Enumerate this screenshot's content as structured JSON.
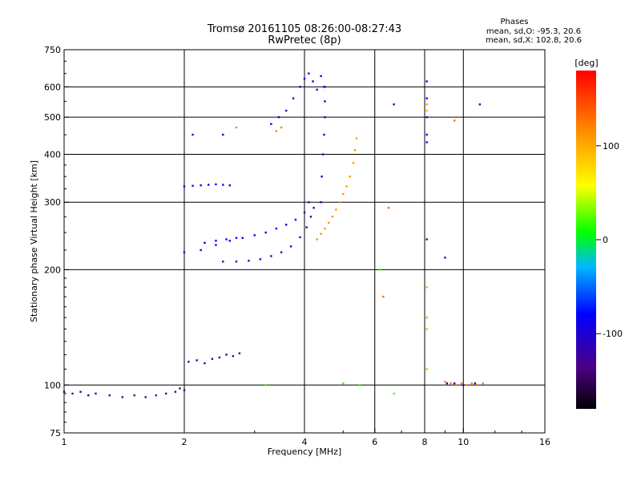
{
  "header": {
    "title_line1": "Tromsø 20161105 08:26:00-08:27:43",
    "title_line2": "RwPretec (8p)",
    "phases_title": "Phases",
    "phases_o": "mean, sd,O: -95.3, 20.6",
    "phases_x": "mean, sd,X: 102.8, 20.6"
  },
  "chart_data": {
    "type": "scatter",
    "xlabel": "Frequency [MHz]",
    "ylabel": "Stationary phase Virtual Height [km]",
    "x_scale": "log",
    "y_scale": "log",
    "xlim": [
      1,
      16
    ],
    "ylim": [
      75,
      750
    ],
    "x_ticks": [
      1,
      2,
      4,
      6,
      8,
      10,
      16
    ],
    "y_ticks": [
      75,
      100,
      200,
      300,
      400,
      500,
      600,
      750
    ],
    "grid": true,
    "colorbar": {
      "label": "[deg]",
      "range": [
        -180,
        180
      ],
      "ticks": [
        100,
        0,
        -100
      ]
    },
    "series": [
      {
        "phase": -130,
        "points": [
          [
            1.0,
            96
          ],
          [
            1.05,
            95
          ],
          [
            1.1,
            96
          ],
          [
            1.15,
            94
          ],
          [
            1.2,
            95
          ],
          [
            1.3,
            94
          ],
          [
            1.4,
            93
          ],
          [
            1.5,
            94
          ],
          [
            1.6,
            93
          ],
          [
            1.7,
            94
          ],
          [
            1.8,
            95
          ],
          [
            1.9,
            96
          ],
          [
            1.95,
            98
          ],
          [
            2.0,
            97
          ]
        ]
      },
      {
        "phase": -110,
        "points": [
          [
            2.05,
            115
          ],
          [
            2.15,
            116
          ],
          [
            2.25,
            114
          ],
          [
            2.35,
            117
          ],
          [
            2.45,
            118
          ],
          [
            2.55,
            120
          ],
          [
            2.65,
            119
          ],
          [
            2.75,
            121
          ]
        ]
      },
      {
        "phase": -100,
        "points": [
          [
            2.0,
            330
          ],
          [
            2.1,
            331
          ],
          [
            2.2,
            332
          ],
          [
            2.3,
            333
          ],
          [
            2.4,
            334
          ],
          [
            2.5,
            333
          ],
          [
            2.6,
            332
          ]
        ]
      },
      {
        "phase": -120,
        "points": [
          [
            2.5,
            210
          ],
          [
            2.7,
            210
          ],
          [
            2.9,
            211
          ],
          [
            3.1,
            213
          ],
          [
            3.3,
            217
          ],
          [
            3.5,
            222
          ],
          [
            3.7,
            230
          ],
          [
            3.9,
            243
          ],
          [
            4.05,
            258
          ],
          [
            4.15,
            275
          ],
          [
            4.22,
            290
          ]
        ]
      },
      {
        "phase": -95,
        "points": [
          [
            2.0,
            222
          ],
          [
            2.2,
            225
          ],
          [
            2.4,
            232
          ],
          [
            2.6,
            238
          ],
          [
            2.8,
            242
          ],
          [
            3.0,
            246
          ],
          [
            3.2,
            250
          ],
          [
            3.4,
            256
          ],
          [
            3.6,
            262
          ],
          [
            3.8,
            270
          ],
          [
            4.0,
            282
          ],
          [
            4.1,
            300
          ]
        ]
      },
      {
        "phase": -80,
        "points": [
          [
            2.25,
            235
          ],
          [
            2.4,
            238
          ],
          [
            2.55,
            240
          ],
          [
            2.7,
            242
          ]
        ]
      },
      {
        "phase": -95,
        "points": [
          [
            3.3,
            480
          ],
          [
            3.45,
            500
          ],
          [
            3.6,
            520
          ],
          [
            3.75,
            560
          ],
          [
            3.9,
            600
          ],
          [
            4.0,
            630
          ],
          [
            4.1,
            650
          ],
          [
            4.2,
            620
          ],
          [
            4.3,
            590
          ],
          [
            4.4,
            640
          ],
          [
            4.5,
            600
          ]
        ]
      },
      {
        "phase": -90,
        "points": [
          [
            4.4,
            300
          ],
          [
            4.42,
            350
          ],
          [
            4.45,
            400
          ],
          [
            4.48,
            450
          ],
          [
            4.5,
            500
          ],
          [
            4.5,
            550
          ],
          [
            4.48,
            600
          ]
        ]
      },
      {
        "phase": 110,
        "points": [
          [
            4.3,
            240
          ],
          [
            4.4,
            248
          ],
          [
            4.5,
            256
          ],
          [
            4.6,
            265
          ],
          [
            4.7,
            275
          ],
          [
            4.8,
            287
          ],
          [
            4.9,
            300
          ],
          [
            5.0,
            315
          ],
          [
            5.1,
            330
          ],
          [
            5.2,
            350
          ],
          [
            5.3,
            380
          ],
          [
            5.35,
            410
          ],
          [
            5.4,
            440
          ]
        ]
      },
      {
        "phase": 120,
        "points": [
          [
            3.4,
            460
          ],
          [
            3.5,
            470
          ],
          [
            2.7,
            470
          ]
        ]
      },
      {
        "phase": -90,
        "points": [
          [
            8.1,
            620
          ],
          [
            8.1,
            560
          ],
          [
            8.1,
            500
          ],
          [
            8.1,
            450
          ],
          [
            8.1,
            430
          ]
        ]
      },
      {
        "phase": 100,
        "points": [
          [
            8.1,
            540
          ],
          [
            8.1,
            520
          ],
          [
            8.1,
            180
          ],
          [
            8.1,
            150
          ],
          [
            8.1,
            140
          ],
          [
            8.1,
            110
          ]
        ]
      },
      {
        "phase": 120,
        "points": [
          [
            9.0,
            102
          ],
          [
            9.3,
            101
          ],
          [
            9.6,
            100
          ],
          [
            9.9,
            101
          ],
          [
            10.2,
            100
          ],
          [
            10.5,
            101
          ],
          [
            10.8,
            100
          ],
          [
            11.2,
            101
          ]
        ]
      },
      {
        "phase": -110,
        "points": [
          [
            9.1,
            101
          ],
          [
            9.5,
            101
          ],
          [
            10.0,
            100
          ],
          [
            10.7,
            101
          ]
        ]
      },
      {
        "phase": 20,
        "points": [
          [
            6.2,
            200
          ],
          [
            6.7,
            95
          ],
          [
            3.2,
            100
          ],
          [
            5.0,
            101
          ],
          [
            5.5,
            100
          ]
        ]
      },
      {
        "phase": 130,
        "points": [
          [
            6.3,
            170
          ],
          [
            6.5,
            290
          ],
          [
            9.5,
            490
          ]
        ]
      },
      {
        "phase": -120,
        "points": [
          [
            2.1,
            450
          ],
          [
            2.5,
            450
          ],
          [
            6.7,
            540
          ],
          [
            11.0,
            540
          ],
          [
            9.0,
            215
          ],
          [
            8.1,
            240
          ]
        ]
      }
    ]
  }
}
